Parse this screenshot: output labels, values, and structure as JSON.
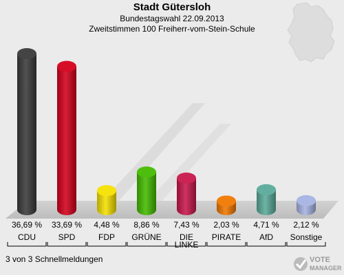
{
  "header": {
    "title": "Stadt Gütersloh",
    "line1": "Bundestagswahl 22.09.2013",
    "line2": "Zweitstimmen 100 Freiherr-vom-Stein-Schule"
  },
  "footer": {
    "note": "3 von 3 Schnellmeldungen",
    "logo_text_1": "VOTE",
    "logo_text_2": "MANAGER"
  },
  "chart_data": {
    "type": "bar",
    "categories": [
      "CDU",
      "SPD",
      "FDP",
      "GRÜNE",
      "DIE LINKE",
      "PIRATE",
      "AfD",
      "Sonstige"
    ],
    "values": [
      36.69,
      33.69,
      4.48,
      8.86,
      7.43,
      2.03,
      4.71,
      2.12
    ],
    "value_labels": [
      "36,69 %",
      "33,69 %",
      "4,48 %",
      "8,86 %",
      "7,43 %",
      "2,03 %",
      "4,71 %",
      "2,12 %"
    ],
    "colors": [
      "#3a3a3a",
      "#d4001c",
      "#f5e000",
      "#44bb00",
      "#c8174b",
      "#f07800",
      "#5aab9a",
      "#a6b2e2"
    ],
    "ylim": [
      0,
      40
    ]
  }
}
